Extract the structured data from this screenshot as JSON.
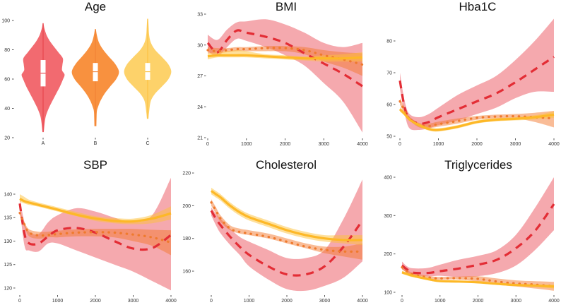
{
  "colors": {
    "A": "#e32d35",
    "B": "#ef7a2e",
    "C": "#fdb827",
    "A_band": "#ef6f78",
    "B_band": "#f37a30",
    "C_band": "#fdc23a",
    "A_violin": "#f26a70",
    "B_violin": "#f8913f",
    "C_violin": "#fdd26a"
  },
  "chart_data": [
    {
      "type": "violin",
      "title": "Age",
      "categories": [
        "A",
        "B",
        "C"
      ],
      "ylim": [
        20,
        100
      ],
      "yticks": [
        "20",
        "40",
        "60",
        "80",
        "100"
      ],
      "groups": [
        {
          "name": "A",
          "median": 64,
          "q1": 55,
          "q3": 73,
          "min": 24,
          "max": 98,
          "density": {
            "y": [
              24,
              30,
              35,
              40,
              45,
              50,
              55,
              60,
              63,
              66,
              70,
              74,
              78,
              82,
              86,
              90,
              95,
              98
            ],
            "w": [
              0.02,
              0.06,
              0.12,
              0.25,
              0.42,
              0.6,
              0.78,
              0.93,
              1.0,
              0.88,
              0.9,
              0.92,
              0.72,
              0.5,
              0.3,
              0.15,
              0.04,
              0.01
            ]
          }
        },
        {
          "name": "B",
          "median": 65,
          "q1": 58.5,
          "q3": 71,
          "min": 28,
          "max": 94,
          "density": {
            "y": [
              28,
              34,
              38,
              40,
              45,
              50,
              55,
              60,
              65,
              70,
              75,
              80,
              85,
              90,
              94
            ],
            "w": [
              0.03,
              0.04,
              0.05,
              0.08,
              0.2,
              0.38,
              0.62,
              0.88,
              1.0,
              0.85,
              0.58,
              0.32,
              0.14,
              0.05,
              0.01
            ]
          }
        },
        {
          "name": "C",
          "median": 65,
          "q1": 59.5,
          "q3": 71,
          "min": 33,
          "max": 101,
          "density": {
            "y": [
              33,
              38,
              45,
              50,
              55,
              60,
              65,
              70,
              75,
              80,
              85,
              90,
              95,
              101
            ],
            "w": [
              0.02,
              0.05,
              0.12,
              0.3,
              0.6,
              0.88,
              1.0,
              0.88,
              0.6,
              0.3,
              0.12,
              0.05,
              0.03,
              0.01
            ]
          }
        }
      ]
    },
    {
      "type": "line",
      "title": "BMI",
      "xlim": [
        0,
        4000
      ],
      "ylim": [
        21,
        33
      ],
      "xticks": [
        "0",
        "1000",
        "2000",
        "3000",
        "4000"
      ],
      "yticks": [
        "21",
        "24",
        "27",
        "30",
        "33"
      ],
      "x": [
        0,
        250,
        500,
        750,
        1000,
        1500,
        2000,
        2500,
        3000,
        3500,
        4000
      ],
      "series": [
        {
          "name": "A",
          "style": "dashed",
          "mean": [
            30.2,
            29.3,
            30.5,
            31.4,
            31.2,
            30.8,
            30.2,
            29.2,
            28.2,
            27.2,
            26.0
          ],
          "lo": [
            29.4,
            28.9,
            29.8,
            30.6,
            30.4,
            29.8,
            29.0,
            28.0,
            26.3,
            24.5,
            21.5
          ],
          "hi": [
            31.0,
            30.5,
            31.5,
            32.2,
            32.3,
            32.5,
            32.0,
            31.2,
            30.2,
            29.8,
            30.2
          ]
        },
        {
          "name": "B",
          "style": "dotted",
          "mean": [
            29.5,
            29.4,
            29.5,
            29.6,
            29.6,
            29.7,
            29.7,
            29.5,
            29.0,
            28.6,
            28.1
          ],
          "lo": [
            29.2,
            29.2,
            29.3,
            29.4,
            29.4,
            29.4,
            29.4,
            29.1,
            28.4,
            27.8,
            27.0
          ],
          "hi": [
            29.8,
            29.7,
            29.7,
            29.8,
            29.8,
            29.9,
            29.9,
            29.8,
            29.5,
            29.3,
            29.2
          ]
        },
        {
          "name": "C",
          "style": "solid",
          "mean": [
            28.9,
            29.0,
            29.0,
            29.0,
            29.0,
            28.9,
            28.8,
            28.7,
            28.7,
            28.7,
            28.8
          ],
          "lo": [
            28.6,
            28.8,
            28.8,
            28.8,
            28.8,
            28.7,
            28.6,
            28.5,
            28.4,
            28.4,
            28.4
          ],
          "hi": [
            29.2,
            29.3,
            29.4,
            29.5,
            29.4,
            29.1,
            29.0,
            28.9,
            29.0,
            29.1,
            29.3
          ]
        }
      ]
    },
    {
      "type": "line",
      "title": "Hba1C",
      "xlim": [
        0,
        4000
      ],
      "ylim": [
        49,
        88
      ],
      "xticks": [
        "0",
        "1000",
        "2000",
        "3000",
        "4000"
      ],
      "yticks": [
        "50",
        "60",
        "70",
        "80"
      ],
      "x": [
        0,
        125,
        250,
        500,
        750,
        1000,
        1500,
        2000,
        2500,
        3000,
        3500,
        4000
      ],
      "series": [
        {
          "name": "A",
          "style": "dashed",
          "mean": [
            67.5,
            59,
            55.5,
            54,
            54.5,
            56,
            58.5,
            61,
            63.5,
            67,
            71,
            75
          ],
          "lo": [
            65,
            57,
            52.5,
            52,
            52.5,
            53.5,
            55,
            57,
            59,
            62,
            64,
            64
          ],
          "hi": [
            70,
            61,
            57,
            56,
            57,
            59,
            63,
            66,
            69,
            74,
            80,
            87
          ]
        },
        {
          "name": "B",
          "style": "dotted",
          "mean": [
            61,
            58,
            55.5,
            53.5,
            53.2,
            53.8,
            54.8,
            55.8,
            56.2,
            56.3,
            56,
            55.6
          ],
          "lo": [
            60,
            57,
            55,
            52.8,
            52.6,
            53,
            54,
            55.2,
            55.6,
            55.6,
            54.5,
            52.8
          ],
          "hi": [
            62,
            59,
            56.2,
            54.2,
            54,
            54.6,
            55.6,
            56.4,
            56.8,
            57,
            57.4,
            58
          ]
        },
        {
          "name": "C",
          "style": "solid",
          "mean": [
            58.5,
            57,
            55.3,
            53.5,
            52.3,
            52,
            53,
            54.5,
            55.2,
            55.5,
            56,
            56.8
          ],
          "lo": [
            57.8,
            56.4,
            54.8,
            53,
            51.8,
            51.5,
            52.5,
            54,
            54.7,
            55,
            55.3,
            55.8
          ],
          "hi": [
            59.2,
            57.6,
            55.8,
            54,
            52.8,
            52.5,
            53.5,
            55,
            55.7,
            56,
            56.6,
            57.8
          ]
        }
      ]
    },
    {
      "type": "line",
      "title": "SBP",
      "xlim": [
        0,
        4000
      ],
      "ylim": [
        119,
        144
      ],
      "xticks": [
        "0",
        "1000",
        "2000",
        "3000",
        "4000"
      ],
      "yticks": [
        "120",
        "125",
        "130",
        "135",
        "140"
      ],
      "x": [
        0,
        125,
        250,
        500,
        750,
        1000,
        1500,
        2000,
        2500,
        3000,
        3500,
        4000
      ],
      "series": [
        {
          "name": "A",
          "style": "dashed",
          "mean": [
            138,
            131.5,
            129.5,
            129.5,
            131,
            132.3,
            132.8,
            131.8,
            130,
            128.4,
            128.5,
            131.3
          ],
          "lo": [
            137,
            129,
            128,
            127.8,
            129.5,
            129.5,
            128,
            126.5,
            125,
            123.5,
            121.5,
            119.5
          ],
          "hi": [
            139,
            134,
            132,
            131.5,
            134,
            135.5,
            137,
            136.3,
            135,
            134,
            135.5,
            143.5
          ]
        },
        {
          "name": "B",
          "style": "dotted",
          "mean": [
            136,
            133.5,
            131.8,
            131.2,
            131.3,
            131.5,
            131.8,
            131.9,
            131.8,
            131.4,
            130.8,
            129.7
          ],
          "lo": [
            135.5,
            133,
            131,
            130.5,
            130.8,
            130.8,
            131,
            131,
            130.8,
            130,
            129,
            127
          ],
          "hi": [
            136.5,
            134,
            132.5,
            132,
            132,
            132.2,
            132.5,
            132.6,
            132.6,
            132.6,
            132.4,
            132.3
          ]
        },
        {
          "name": "C",
          "style": "solid",
          "mean": [
            139,
            138.5,
            138.2,
            137.7,
            137.2,
            136.7,
            135.6,
            134.8,
            134.3,
            134.2,
            134.8,
            135.9
          ],
          "lo": [
            138.4,
            138,
            137.7,
            137.3,
            136.8,
            136.3,
            135.3,
            134.3,
            133.8,
            133.6,
            133.8,
            134.6
          ],
          "hi": [
            140,
            139.4,
            138.8,
            138.2,
            137.7,
            137.2,
            136.2,
            135.3,
            134.9,
            134.8,
            135.6,
            137.4
          ]
        }
      ]
    },
    {
      "type": "line",
      "title": "Cholesterol",
      "xlim": [
        0,
        4000
      ],
      "ylim": [
        145,
        222
      ],
      "xticks": [
        "0",
        "1000",
        "2000",
        "3000",
        "4000"
      ],
      "yticks": [
        "160",
        "180",
        "200",
        "220"
      ],
      "x": [
        0,
        125,
        250,
        500,
        750,
        1000,
        1500,
        2000,
        2500,
        3000,
        3500,
        4000
      ],
      "series": [
        {
          "name": "A",
          "style": "dashed",
          "mean": [
            197,
            192,
            188,
            181,
            175,
            170,
            163,
            158,
            158,
            163,
            175,
            191
          ],
          "lo": [
            194,
            188,
            183,
            176,
            170,
            163,
            155,
            149,
            148,
            151,
            156,
            166
          ],
          "hi": [
            199,
            195,
            192,
            186,
            181,
            178,
            173,
            168,
            168,
            173,
            192,
            216
          ]
        },
        {
          "name": "B",
          "style": "dotted",
          "mean": [
            202,
            197,
            192,
            186,
            184,
            183,
            181,
            178,
            175,
            173,
            172,
            172
          ],
          "lo": [
            200,
            195,
            190,
            185,
            183,
            182,
            180,
            177,
            174,
            171,
            169,
            167
          ],
          "hi": [
            204,
            199,
            194,
            188,
            186,
            185,
            183,
            180,
            177,
            175,
            175,
            177
          ]
        },
        {
          "name": "C",
          "style": "solid",
          "mean": [
            209,
            207,
            205,
            200,
            196,
            193,
            189,
            185,
            182,
            180,
            179,
            179
          ],
          "lo": [
            207,
            205,
            203,
            198,
            194,
            191,
            187,
            183,
            180,
            178,
            177,
            176
          ],
          "hi": [
            211,
            209,
            207,
            202,
            198,
            195,
            191,
            187,
            184,
            182,
            182,
            182
          ]
        }
      ]
    },
    {
      "type": "line",
      "title": "Triglycerides",
      "xlim": [
        0,
        4000
      ],
      "ylim": [
        95,
        405
      ],
      "xticks": [
        "0",
        "1000",
        "2000",
        "3000",
        "4000"
      ],
      "yticks": [
        "100",
        "200",
        "300",
        "400"
      ],
      "x": [
        0,
        125,
        250,
        500,
        750,
        1000,
        1500,
        2000,
        2500,
        3000,
        3500,
        4000
      ],
      "series": [
        {
          "name": "A",
          "style": "dashed",
          "mean": [
            170,
            160,
            152,
            150,
            151,
            155,
            162,
            172,
            185,
            215,
            260,
            330
          ],
          "lo": [
            160,
            152,
            146,
            143,
            142,
            143,
            140,
            142,
            150,
            170,
            210,
            262
          ],
          "hi": [
            180,
            168,
            163,
            162,
            165,
            172,
            185,
            195,
            210,
            250,
            320,
            400
          ]
        },
        {
          "name": "B",
          "style": "dotted",
          "mean": [
            165,
            155,
            148,
            142,
            138,
            136,
            137,
            135,
            128,
            123,
            120,
            115
          ],
          "lo": [
            160,
            151,
            145,
            139,
            135,
            133,
            133,
            128,
            120,
            115,
            110,
            104
          ],
          "hi": [
            170,
            159,
            152,
            146,
            142,
            140,
            141,
            142,
            136,
            131,
            129,
            127
          ]
        },
        {
          "name": "C",
          "style": "solid",
          "mean": [
            152,
            148,
            144,
            138,
            133,
            129,
            128,
            126,
            122,
            119,
            117,
            115
          ],
          "lo": [
            148,
            144,
            140,
            135,
            130,
            127,
            126,
            124,
            120,
            116,
            114,
            110
          ],
          "hi": [
            156,
            152,
            148,
            141,
            136,
            131,
            130,
            128,
            124,
            122,
            121,
            120
          ]
        }
      ]
    }
  ]
}
